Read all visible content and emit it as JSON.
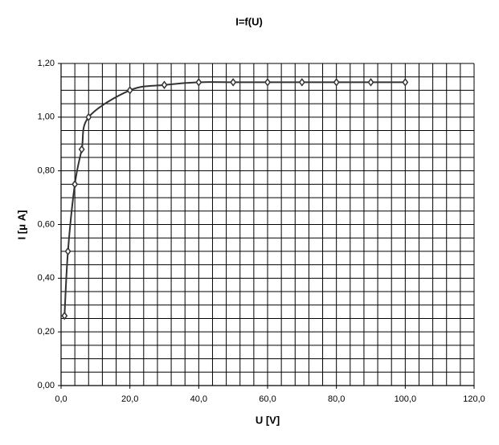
{
  "chart_data": {
    "type": "line",
    "title": "I=f(U)",
    "x_label": "U [V]",
    "y_label": "I [μ A]",
    "x": [
      1,
      2,
      4,
      6,
      8,
      20,
      30,
      40,
      50,
      60,
      70,
      80,
      90,
      100
    ],
    "series": [
      {
        "name": "I",
        "color": "#333333",
        "values": [
          0.26,
          0.5,
          0.75,
          0.88,
          1.0,
          1.1,
          1.12,
          1.13,
          1.13,
          1.13,
          1.13,
          1.13,
          1.13,
          1.13
        ]
      }
    ],
    "xlim": [
      0,
      120
    ],
    "ylim": [
      0,
      1.2
    ],
    "xticks": [
      {
        "value": 0,
        "label": "0,0"
      },
      {
        "value": 20,
        "label": "20,0"
      },
      {
        "value": 40,
        "label": "40,0"
      },
      {
        "value": 60,
        "label": "60,0"
      },
      {
        "value": 80,
        "label": "80,0"
      },
      {
        "value": 100,
        "label": "100,0"
      },
      {
        "value": 120,
        "label": "120,0"
      }
    ],
    "yticks": [
      {
        "value": 0,
        "label": "0,00"
      },
      {
        "value": 0.2,
        "label": "0,20"
      },
      {
        "value": 0.4,
        "label": "0,40"
      },
      {
        "value": 0.6,
        "label": "0,60"
      },
      {
        "value": 0.8,
        "label": "0,80"
      },
      {
        "value": 1.0,
        "label": "1,00"
      },
      {
        "value": 1.2,
        "label": "1,20"
      }
    ],
    "xgrid": [
      4,
      8,
      12,
      16,
      20,
      24,
      28,
      32,
      36,
      40,
      44,
      48,
      52,
      56,
      60,
      64,
      68,
      72,
      76,
      80,
      84,
      88,
      92,
      96,
      100,
      104,
      108,
      112,
      116,
      120
    ],
    "ygrid": [
      0.05,
      0.1,
      0.15,
      0.2,
      0.25,
      0.3,
      0.35,
      0.4,
      0.45,
      0.5,
      0.55,
      0.6,
      0.65,
      0.7,
      0.75,
      0.8,
      0.85,
      0.9,
      0.95,
      1.0,
      1.05,
      1.1,
      1.15,
      1.2
    ],
    "grid": true
  }
}
